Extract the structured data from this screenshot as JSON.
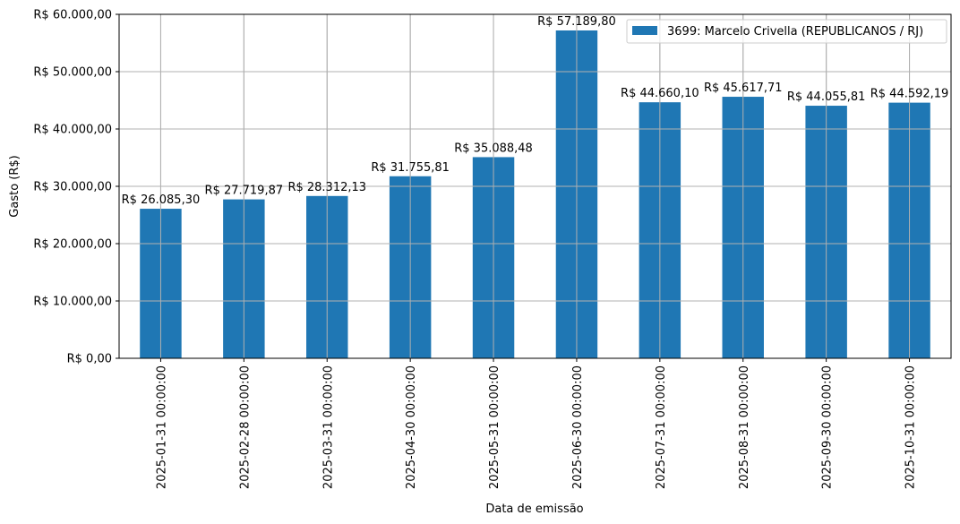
{
  "chart_data": {
    "type": "bar",
    "xlabel": "Data de emissão",
    "ylabel": "Gasto (R$)",
    "ylim": [
      0,
      60000
    ],
    "yticks": [
      0,
      10000,
      20000,
      30000,
      40000,
      50000,
      60000
    ],
    "ytick_labels": [
      "R$ 0,00",
      "R$ 10.000,00",
      "R$ 20.000,00",
      "R$ 30.000,00",
      "R$ 40.000,00",
      "R$ 50.000,00",
      "R$ 60.000,00"
    ],
    "grid": true,
    "legend_position": "top-right",
    "colors": {
      "bar": "#1f77b4",
      "grid": "#b0b0b0"
    },
    "categories": [
      "2025-01-31 00:00:00",
      "2025-02-28 00:00:00",
      "2025-03-31 00:00:00",
      "2025-04-30 00:00:00",
      "2025-05-31 00:00:00",
      "2025-06-30 00:00:00",
      "2025-07-31 00:00:00",
      "2025-08-31 00:00:00",
      "2025-09-30 00:00:00",
      "2025-10-31 00:00:00"
    ],
    "series": [
      {
        "name": "3699: Marcelo Crivella (REPUBLICANOS / RJ)",
        "values": [
          26085.3,
          27719.87,
          28312.13,
          31755.81,
          35088.48,
          57189.8,
          44660.1,
          45617.71,
          44055.81,
          44592.19
        ],
        "data_labels": [
          "R$ 26.085,30",
          "R$ 27.719,87",
          "R$ 28.312,13",
          "R$ 31.755,81",
          "R$ 35.088,48",
          "R$ 57.189,80",
          "R$ 44.660,10",
          "R$ 45.617,71",
          "R$ 44.055,81",
          "R$ 44.592,19"
        ]
      }
    ]
  }
}
